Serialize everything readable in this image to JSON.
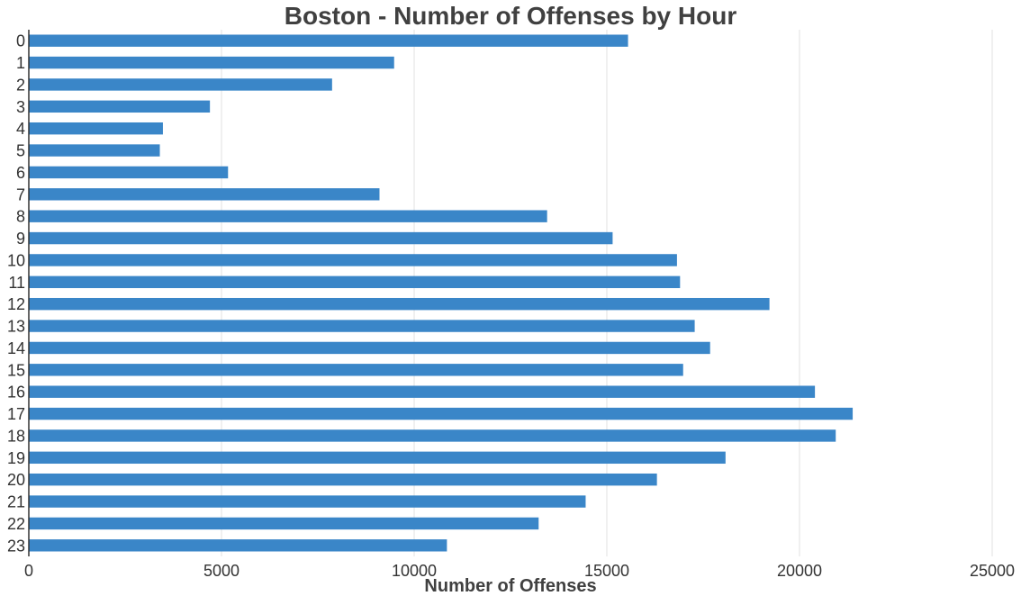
{
  "chart_data": {
    "type": "bar",
    "orientation": "horizontal",
    "title": "Boston - Number of Offenses by Hour",
    "xlabel": "Number of Offenses",
    "ylabel": "",
    "xlim": [
      0,
      25000
    ],
    "xticks": [
      "0",
      "5000",
      "10000",
      "15000",
      "20000",
      "25000"
    ],
    "categories": [
      "0",
      "1",
      "2",
      "3",
      "4",
      "5",
      "6",
      "7",
      "8",
      "9",
      "10",
      "11",
      "12",
      "13",
      "14",
      "15",
      "16",
      "17",
      "18",
      "19",
      "20",
      "21",
      "22",
      "23"
    ],
    "values": [
      15550,
      9480,
      7870,
      4700,
      3480,
      3400,
      5170,
      9100,
      13450,
      15150,
      16820,
      16900,
      19220,
      17280,
      17680,
      16980,
      20400,
      21380,
      20940,
      18080,
      16300,
      14450,
      13230,
      10850
    ],
    "grid": true,
    "bar_color": "#3a86c8",
    "grid_color": "#ebebeb",
    "axis_color": "#333333"
  }
}
